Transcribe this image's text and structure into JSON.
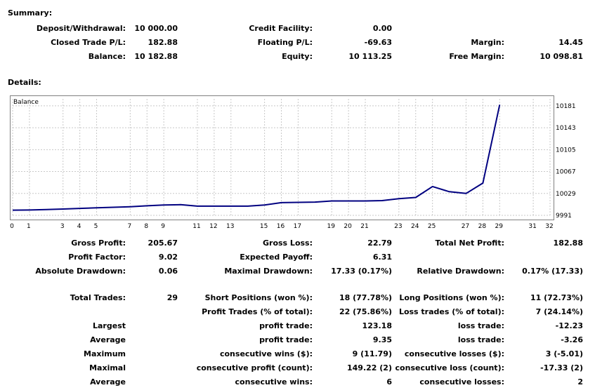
{
  "summary": {
    "title": "Summary:",
    "deposit_label": "Deposit/Withdrawal:",
    "deposit_value": "10 000.00",
    "credit_label": "Credit Facility:",
    "credit_value": "0.00",
    "closed_pl_label": "Closed Trade P/L:",
    "closed_pl_value": "182.88",
    "floating_pl_label": "Floating P/L:",
    "floating_pl_value": "-69.63",
    "margin_label": "Margin:",
    "margin_value": "14.45",
    "balance_label": "Balance:",
    "balance_value": "10 182.88",
    "equity_label": "Equity:",
    "equity_value": "10 113.25",
    "free_margin_label": "Free Margin:",
    "free_margin_value": "10 098.81"
  },
  "details": {
    "title": "Details:",
    "gross_profit_label": "Gross Profit:",
    "gross_profit_value": "205.67",
    "gross_loss_label": "Gross Loss:",
    "gross_loss_value": "22.79",
    "total_net_profit_label": "Total Net Profit:",
    "total_net_profit_value": "182.88",
    "profit_factor_label": "Profit Factor:",
    "profit_factor_value": "9.02",
    "expected_payoff_label": "Expected Payoff:",
    "expected_payoff_value": "6.31",
    "absolute_drawdown_label": "Absolute Drawdown:",
    "absolute_drawdown_value": "0.06",
    "maximal_drawdown_label": "Maximal Drawdown:",
    "maximal_drawdown_value": "17.33 (0.17%)",
    "relative_drawdown_label": "Relative Drawdown:",
    "relative_drawdown_value": "0.17% (17.33)",
    "total_trades_label": "Total Trades:",
    "total_trades_value": "29",
    "short_positions_label": "Short Positions (won %):",
    "short_positions_value": "18 (77.78%)",
    "long_positions_label": "Long Positions (won %):",
    "long_positions_value": "11 (72.73%)",
    "profit_trades_label": "Profit Trades (% of total):",
    "profit_trades_value": "22 (75.86%)",
    "loss_trades_label": "Loss trades (% of total):",
    "loss_trades_value": "7 (24.14%)",
    "largest_label": "Largest",
    "largest_profit_label": "profit trade:",
    "largest_profit_value": "123.18",
    "largest_loss_label": "loss trade:",
    "largest_loss_value": "-12.23",
    "average_label": "Average",
    "average_profit_label": "profit trade:",
    "average_profit_value": "9.35",
    "average_loss_label": "loss trade:",
    "average_loss_value": "-3.26",
    "maximum_label": "Maximum",
    "max_cons_wins_label": "consecutive wins ($):",
    "max_cons_wins_value": "9 (11.79)",
    "max_cons_losses_label": "consecutive losses ($):",
    "max_cons_losses_value": "3 (-5.01)",
    "maximal_label": "Maximal",
    "maximal_cons_profit_label": "consecutive profit (count):",
    "maximal_cons_profit_value": "149.22 (2)",
    "maximal_cons_loss_label": "consecutive loss (count):",
    "maximal_cons_loss_value": "-17.33 (2)",
    "average2_label": "Average",
    "avg_cons_wins_label": "consecutive wins:",
    "avg_cons_wins_value": "6",
    "avg_cons_losses_label": "consecutive losses:",
    "avg_cons_losses_value": "2"
  },
  "chart_data": {
    "type": "line",
    "title": "Balance",
    "xlabel": "",
    "ylabel": "",
    "x_ticks": [
      0,
      1,
      3,
      4,
      5,
      7,
      8,
      9,
      11,
      12,
      13,
      15,
      16,
      17,
      19,
      20,
      21,
      23,
      24,
      25,
      27,
      28,
      29,
      31,
      32
    ],
    "y_ticks": [
      9991,
      10029,
      10067,
      10105,
      10143,
      10181
    ],
    "xlim": [
      0,
      32
    ],
    "ylim": [
      9991,
      10193
    ],
    "grid": true,
    "line_color": "#000080",
    "series": [
      {
        "x": [
          0,
          1,
          2,
          3,
          4,
          5,
          6,
          7,
          8,
          9,
          10,
          11,
          12,
          13,
          14,
          15,
          16,
          17,
          18,
          19,
          20,
          21,
          22,
          23,
          24,
          25,
          26,
          27,
          28,
          29
        ],
        "y": [
          10000,
          10000.2,
          10001,
          10002,
          10003,
          10004,
          10005,
          10006,
          10007.5,
          10009,
          10009.5,
          10007,
          10007,
          10007,
          10007,
          10009,
          10013,
          10013.5,
          10014,
          10016,
          10016,
          10016,
          10016.5,
          10020,
          10022,
          10041,
          10032,
          10029,
          10047,
          10182.88
        ]
      }
    ]
  }
}
